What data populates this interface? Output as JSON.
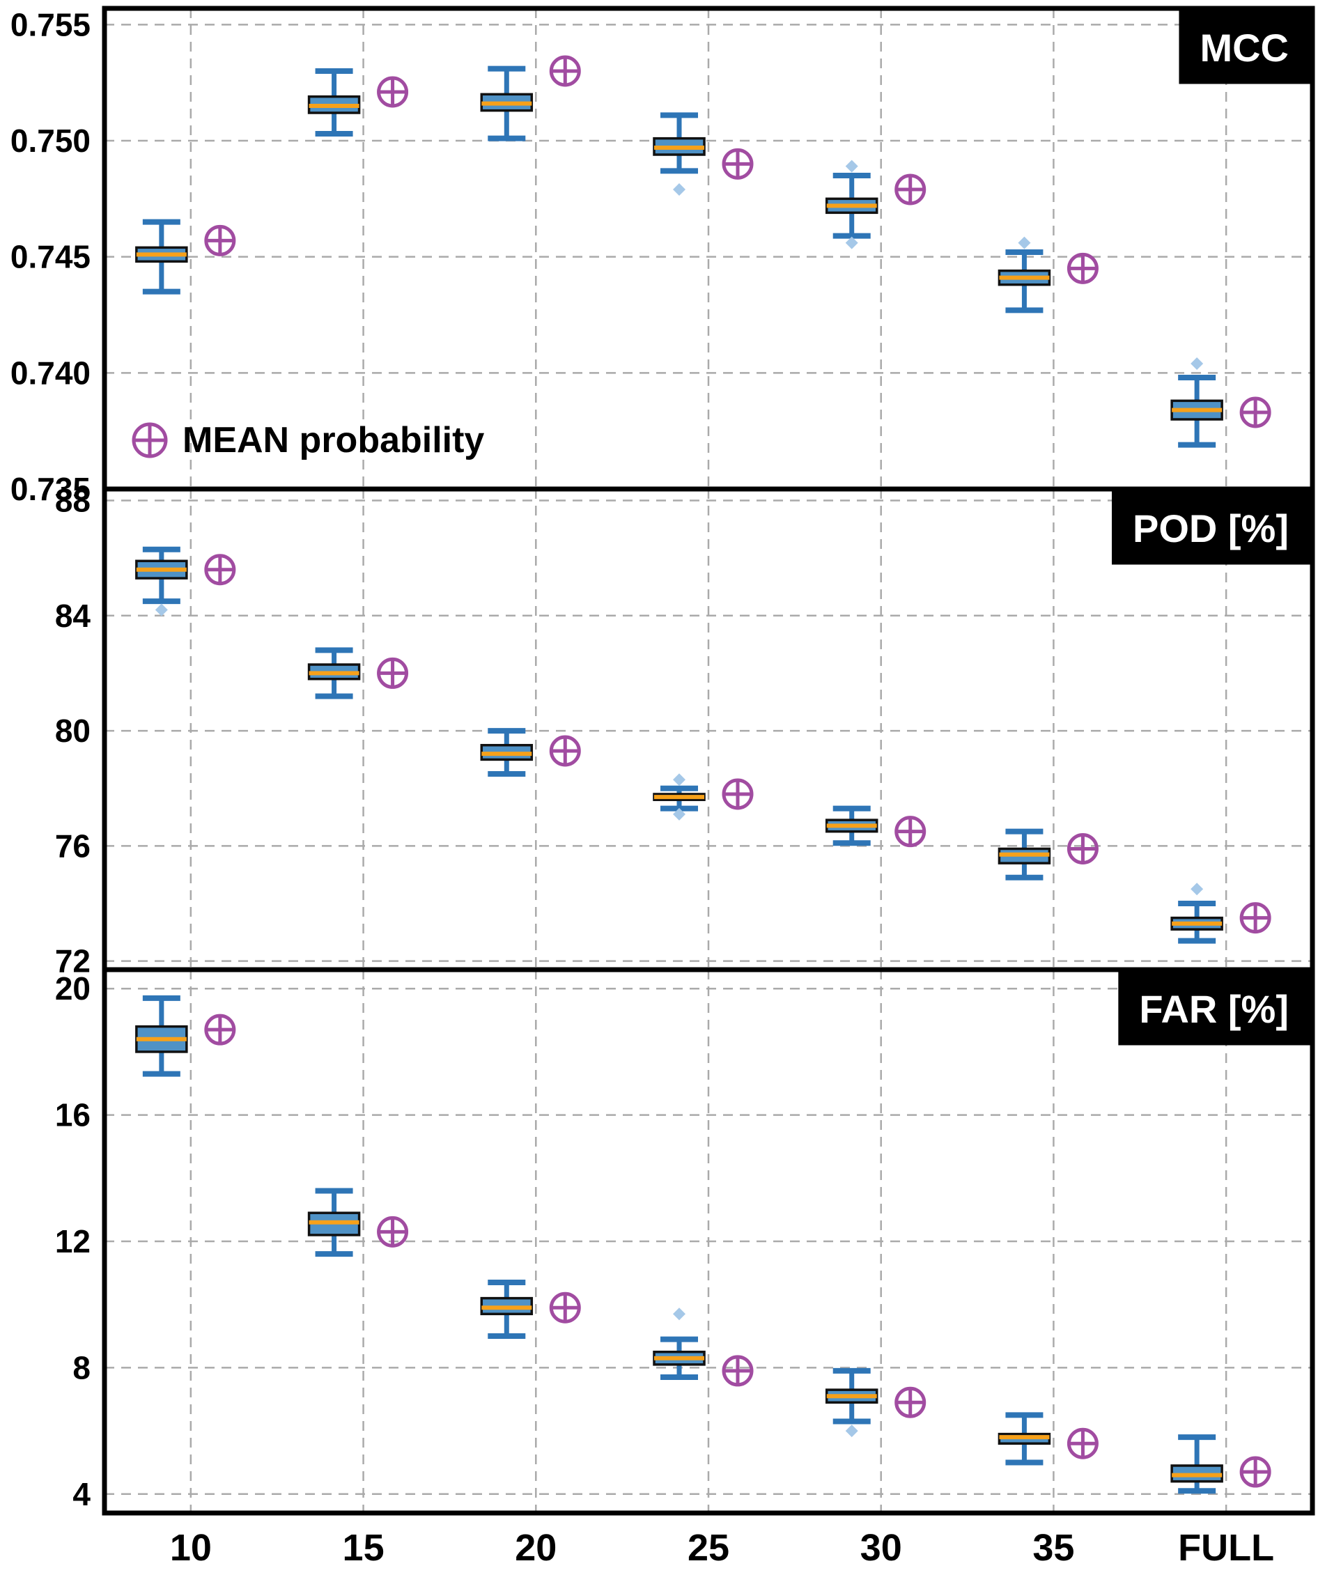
{
  "figure": {
    "legend_label": "MEAN probability",
    "x_categories": [
      "10",
      "15",
      "20",
      "25",
      "30",
      "35",
      "FULL"
    ]
  },
  "style": {
    "box_fill": "#4f92c6",
    "box_edge": "#111111",
    "median_color": "#f7a11a",
    "whisker_color": "#2e75b6",
    "outlier_color": "#a5c8e8",
    "mean_color": "#a14ca1",
    "grid_color": "#aaaaaa",
    "panel_border": "#000000",
    "title_bg": "#000000",
    "title_fg": "#ffffff"
  },
  "chart_data": [
    {
      "type": "box",
      "id": "mcc",
      "title": "MCC",
      "legend": true,
      "ylim": [
        0.735,
        0.7557
      ],
      "yticks": [
        0.735,
        0.74,
        0.745,
        0.75,
        0.755
      ],
      "ytick_labels": [
        "0.735",
        "0.740",
        "0.745",
        "0.750",
        "0.755"
      ],
      "categories": [
        "10",
        "15",
        "20",
        "25",
        "30",
        "35",
        "FULL"
      ],
      "boxes": [
        {
          "category": "10",
          "whislo": 0.7435,
          "q1": 0.7448,
          "med": 0.7451,
          "q3": 0.7454,
          "whishi": 0.7465,
          "outliers": [],
          "mean": 0.7457
        },
        {
          "category": "15",
          "whislo": 0.7503,
          "q1": 0.7512,
          "med": 0.7515,
          "q3": 0.7519,
          "whishi": 0.753,
          "outliers": [],
          "mean": 0.7521
        },
        {
          "category": "20",
          "whislo": 0.7501,
          "q1": 0.7513,
          "med": 0.7516,
          "q3": 0.752,
          "whishi": 0.7531,
          "outliers": [],
          "mean": 0.753
        },
        {
          "category": "25",
          "whislo": 0.7487,
          "q1": 0.7494,
          "med": 0.7497,
          "q3": 0.7501,
          "whishi": 0.7511,
          "outliers": [
            0.7479
          ],
          "mean": 0.749
        },
        {
          "category": "30",
          "whislo": 0.7459,
          "q1": 0.7469,
          "med": 0.7472,
          "q3": 0.7475,
          "whishi": 0.7485,
          "outliers": [
            0.7489,
            0.7456
          ],
          "mean": 0.7479
        },
        {
          "category": "35",
          "whislo": 0.7427,
          "q1": 0.7438,
          "med": 0.7441,
          "q3": 0.7444,
          "whishi": 0.7452,
          "outliers": [
            0.7456
          ],
          "mean": 0.7445
        },
        {
          "category": "FULL",
          "whislo": 0.7369,
          "q1": 0.738,
          "med": 0.7384,
          "q3": 0.7388,
          "whishi": 0.7398,
          "outliers": [
            0.7404
          ],
          "mean": 0.7383
        }
      ]
    },
    {
      "type": "box",
      "id": "pod",
      "title": "POD [%]",
      "legend": false,
      "ylim": [
        71.7,
        88.4
      ],
      "yticks": [
        72,
        76,
        80,
        84,
        88
      ],
      "ytick_labels": [
        "72",
        "76",
        "80",
        "84",
        "88"
      ],
      "categories": [
        "10",
        "15",
        "20",
        "25",
        "30",
        "35",
        "FULL"
      ],
      "boxes": [
        {
          "category": "10",
          "whislo": 84.5,
          "q1": 85.3,
          "med": 85.6,
          "q3": 85.9,
          "whishi": 86.3,
          "outliers": [
            84.2
          ],
          "mean": 85.6
        },
        {
          "category": "15",
          "whislo": 81.2,
          "q1": 81.8,
          "med": 82.0,
          "q3": 82.3,
          "whishi": 82.8,
          "outliers": [],
          "mean": 82.0
        },
        {
          "category": "20",
          "whislo": 78.5,
          "q1": 79.0,
          "med": 79.2,
          "q3": 79.5,
          "whishi": 80.0,
          "outliers": [],
          "mean": 79.3
        },
        {
          "category": "25",
          "whislo": 77.3,
          "q1": 77.6,
          "med": 77.7,
          "q3": 77.8,
          "whishi": 78.0,
          "outliers": [
            78.3,
            77.1
          ],
          "mean": 77.8
        },
        {
          "category": "30",
          "whislo": 76.1,
          "q1": 76.5,
          "med": 76.7,
          "q3": 76.9,
          "whishi": 77.3,
          "outliers": [],
          "mean": 76.5
        },
        {
          "category": "35",
          "whislo": 74.9,
          "q1": 75.4,
          "med": 75.7,
          "q3": 75.9,
          "whishi": 76.5,
          "outliers": [],
          "mean": 75.9
        },
        {
          "category": "FULL",
          "whislo": 72.7,
          "q1": 73.1,
          "med": 73.3,
          "q3": 73.5,
          "whishi": 74.0,
          "outliers": [
            74.5
          ],
          "mean": 73.5
        }
      ]
    },
    {
      "type": "box",
      "id": "far",
      "title": "FAR [%]",
      "legend": false,
      "ylim": [
        3.4,
        20.6
      ],
      "yticks": [
        4,
        8,
        12,
        16,
        20
      ],
      "ytick_labels": [
        "4",
        "8",
        "12",
        "16",
        "20"
      ],
      "categories": [
        "10",
        "15",
        "20",
        "25",
        "30",
        "35",
        "FULL"
      ],
      "boxes": [
        {
          "category": "10",
          "whislo": 17.3,
          "q1": 18.0,
          "med": 18.4,
          "q3": 18.8,
          "whishi": 19.7,
          "outliers": [],
          "mean": 18.7
        },
        {
          "category": "15",
          "whislo": 11.6,
          "q1": 12.2,
          "med": 12.6,
          "q3": 12.9,
          "whishi": 13.6,
          "outliers": [],
          "mean": 12.3
        },
        {
          "category": "20",
          "whislo": 9.0,
          "q1": 9.7,
          "med": 9.9,
          "q3": 10.2,
          "whishi": 10.7,
          "outliers": [],
          "mean": 9.9
        },
        {
          "category": "25",
          "whislo": 7.7,
          "q1": 8.1,
          "med": 8.3,
          "q3": 8.5,
          "whishi": 8.9,
          "outliers": [
            9.7
          ],
          "mean": 7.9
        },
        {
          "category": "30",
          "whislo": 6.3,
          "q1": 6.9,
          "med": 7.1,
          "q3": 7.3,
          "whishi": 7.9,
          "outliers": [
            6.0
          ],
          "mean": 6.9
        },
        {
          "category": "35",
          "whislo": 5.0,
          "q1": 5.6,
          "med": 5.8,
          "q3": 5.9,
          "whishi": 6.5,
          "outliers": [],
          "mean": 5.6
        },
        {
          "category": "FULL",
          "whislo": 4.1,
          "q1": 4.4,
          "med": 4.6,
          "q3": 4.9,
          "whishi": 5.8,
          "outliers": [],
          "mean": 4.7
        }
      ]
    }
  ]
}
